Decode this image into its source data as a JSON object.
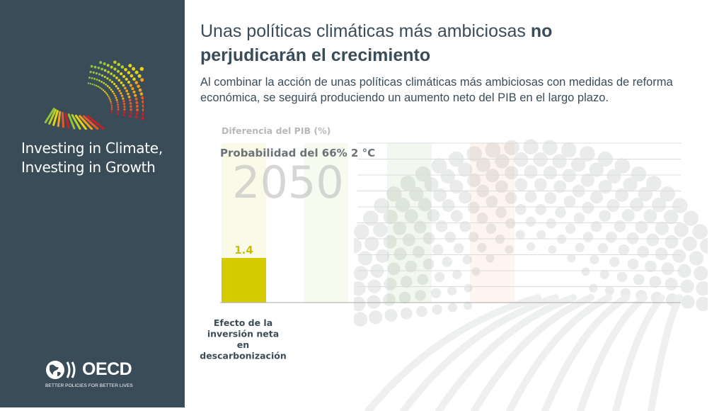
{
  "sidebar": {
    "brand_line1": "Investing in Climate,",
    "brand_line2": "Investing in Growth",
    "oecd_name": "OECD",
    "oecd_tagline": "BETTER POLICIES FOR BETTER LIVES"
  },
  "slide": {
    "title_regular": "Unas políticas climáticas más ambiciosas ",
    "title_bold_1": "no",
    "title_bold_2": "perjudicarán el crecimiento",
    "subtitle": "Al combinar la acción de unas políticas climáticas más ambiciosas con medidas de reforma económica, se seguirá produciendo un aumento neto del PIB en el largo plazo."
  },
  "chart_data": {
    "type": "bar",
    "ylabel": "Diferencia del PIB (%)",
    "scenario_label": "Probabilidad del 66% 2 °C",
    "year_label": "2050",
    "categories": [
      "Efecto de la inversión neta en descarbonización",
      "",
      "",
      ""
    ],
    "category_lines": [
      [
        "Efecto de la",
        "inversión neta",
        "en",
        "descarbonización"
      ]
    ],
    "series": [
      {
        "values": [
          1.4,
          null,
          null,
          null
        ]
      }
    ],
    "data_labels": [
      "1.4",
      "",
      "",
      ""
    ],
    "column_colors": [
      "#d4cc00",
      "#a6c34a",
      "#6ab04c",
      "#f08a5d"
    ],
    "ylim": [
      0,
      5
    ]
  },
  "colors": {
    "sidebar": "#3a4c58",
    "text": "#3a4c58",
    "bar": "#d4cc00",
    "muted_label": "#b5b9bc"
  }
}
